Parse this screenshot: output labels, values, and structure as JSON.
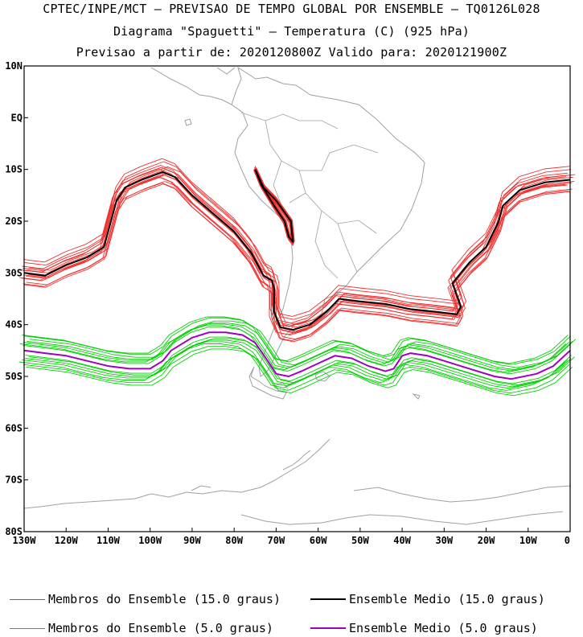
{
  "header": {
    "line1": "CPTEC/INPE/MCT – PREVISAO DE TEMPO GLOBAL POR ENSEMBLE – TQ0126L028",
    "line2": "Diagrama \"Spaguetti\" – Temperatura (C) (925 hPa)",
    "line3": "Previsao a partir de: 2020120800Z  Valido para: 2020121900Z"
  },
  "map": {
    "lon_range": [
      -130,
      0
    ],
    "lat_range": [
      -80,
      10
    ],
    "lat_ticks": [
      {
        "value": 10,
        "label": "10N"
      },
      {
        "value": 0,
        "label": "EQ"
      },
      {
        "value": -10,
        "label": "10S"
      },
      {
        "value": -20,
        "label": "20S"
      },
      {
        "value": -30,
        "label": "30S"
      },
      {
        "value": -40,
        "label": "40S"
      },
      {
        "value": -50,
        "label": "50S"
      },
      {
        "value": -60,
        "label": "60S"
      },
      {
        "value": -70,
        "label": "70S"
      },
      {
        "value": -80,
        "label": "80S"
      }
    ],
    "lon_ticks": [
      {
        "value": -130,
        "label": "130W"
      },
      {
        "value": -120,
        "label": "120W"
      },
      {
        "value": -110,
        "label": "110W"
      },
      {
        "value": -100,
        "label": "100W"
      },
      {
        "value": -90,
        "label": "90W"
      },
      {
        "value": -80,
        "label": "80W"
      },
      {
        "value": -70,
        "label": "70W"
      },
      {
        "value": -60,
        "label": "60W"
      },
      {
        "value": -50,
        "label": "50W"
      },
      {
        "value": -40,
        "label": "40W"
      },
      {
        "value": -30,
        "label": "30W"
      },
      {
        "value": -20,
        "label": "20W"
      },
      {
        "value": -10,
        "label": "10W"
      },
      {
        "value": 0,
        "label": "0"
      }
    ],
    "colors": {
      "coastline": "#a0a0a0",
      "member15": "#f03030",
      "mean15": "#000000",
      "member5": "#00d000",
      "mean5": "#a000c0"
    }
  },
  "contours": {
    "mean15_main": [
      [
        -130,
        -30
      ],
      [
        -125,
        -30.5
      ],
      [
        -120,
        -28.5
      ],
      [
        -115,
        -27
      ],
      [
        -111,
        -25
      ],
      [
        -108,
        -16
      ],
      [
        -106,
        -13.5
      ],
      [
        -102,
        -12
      ],
      [
        -97,
        -10.5
      ],
      [
        -94,
        -11.5
      ],
      [
        -90,
        -15
      ],
      [
        -85,
        -18.5
      ],
      [
        -80,
        -22
      ],
      [
        -76,
        -26
      ],
      [
        -73,
        -30.5
      ],
      [
        -71,
        -31.5
      ],
      [
        -70.5,
        -33
      ],
      [
        -70.5,
        -37.5
      ],
      [
        -69,
        -40.5
      ],
      [
        -66,
        -41
      ],
      [
        -62,
        -40
      ],
      [
        -58,
        -37.5
      ],
      [
        -55,
        -35
      ],
      [
        -50,
        -35.5
      ],
      [
        -44,
        -36
      ],
      [
        -38,
        -37
      ],
      [
        -32,
        -37.5
      ],
      [
        -27,
        -38
      ],
      [
        -26,
        -36.5
      ],
      [
        -28,
        -32
      ],
      [
        -24,
        -28
      ],
      [
        -20,
        -25
      ],
      [
        -17,
        -20
      ],
      [
        -16,
        -17
      ],
      [
        -12,
        -14
      ],
      [
        -6,
        -12.5
      ],
      [
        0,
        -12
      ]
    ],
    "mean15_andes": [
      [
        -75,
        -10
      ],
      [
        -73,
        -13.5
      ],
      [
        -70,
        -16
      ],
      [
        -66.5,
        -20
      ],
      [
        -66,
        -24
      ],
      [
        -67,
        -23
      ],
      [
        -68,
        -20
      ],
      [
        -70.5,
        -17
      ],
      [
        -73.5,
        -13
      ],
      [
        -75,
        -10
      ]
    ],
    "mean5": [
      [
        -130,
        -45
      ],
      [
        -125,
        -45.5
      ],
      [
        -120,
        -46
      ],
      [
        -115,
        -47
      ],
      [
        -110,
        -48
      ],
      [
        -105,
        -48.5
      ],
      [
        -100,
        -48.5
      ],
      [
        -97,
        -47
      ],
      [
        -95,
        -45
      ],
      [
        -90,
        -42.5
      ],
      [
        -86,
        -41.5
      ],
      [
        -82,
        -41.5
      ],
      [
        -78,
        -42
      ],
      [
        -75,
        -43.5
      ],
      [
        -72,
        -47
      ],
      [
        -70,
        -49.5
      ],
      [
        -67,
        -50
      ],
      [
        -64,
        -49
      ],
      [
        -60,
        -47.5
      ],
      [
        -56,
        -46
      ],
      [
        -52,
        -46.5
      ],
      [
        -48,
        -48
      ],
      [
        -44,
        -49
      ],
      [
        -42,
        -48.5
      ],
      [
        -40,
        -46
      ],
      [
        -38,
        -45.5
      ],
      [
        -34,
        -46
      ],
      [
        -30,
        -47
      ],
      [
        -24,
        -48.5
      ],
      [
        -18,
        -50
      ],
      [
        -14,
        -50.5
      ],
      [
        -8,
        -49.5
      ],
      [
        -4,
        -48
      ],
      [
        0,
        -45
      ]
    ],
    "member15_offsets": [
      [
        0,
        0
      ],
      [
        0.8,
        -0.6
      ],
      [
        -0.7,
        0.5
      ],
      [
        1.4,
        0.9
      ],
      [
        -1.3,
        -1.0
      ],
      [
        0.4,
        1.6
      ],
      [
        -0.5,
        -1.7
      ],
      [
        2.0,
        -0.3
      ],
      [
        -1.9,
        0.2
      ],
      [
        1.0,
        -1.4
      ],
      [
        -1.0,
        1.3
      ],
      [
        2.4,
        0.6
      ],
      [
        -2.2,
        -0.5
      ],
      [
        0.2,
        -2.3
      ],
      [
        -0.3,
        2.2
      ]
    ],
    "member5_offsets": [
      [
        0,
        0
      ],
      [
        0.6,
        -0.9
      ],
      [
        -0.6,
        1.0
      ],
      [
        1.2,
        1.8
      ],
      [
        -1.1,
        -1.8
      ],
      [
        0.3,
        2.8
      ],
      [
        -0.4,
        -2.7
      ],
      [
        2.2,
        -1.2
      ],
      [
        -2.0,
        1.3
      ],
      [
        1.0,
        -3.2
      ],
      [
        -1.0,
        3.0
      ],
      [
        2.6,
        2.2
      ],
      [
        -2.4,
        -2.2
      ],
      [
        0.5,
        -1.5
      ],
      [
        -0.5,
        1.6
      ]
    ]
  },
  "legend": {
    "member15": "Membros do Ensemble (15.0 graus)",
    "mean15": "Ensemble Medio (15.0 graus)",
    "member5": "Membros do Ensemble (5.0 graus)",
    "mean5": "Ensemble Medio (5.0 graus)"
  }
}
